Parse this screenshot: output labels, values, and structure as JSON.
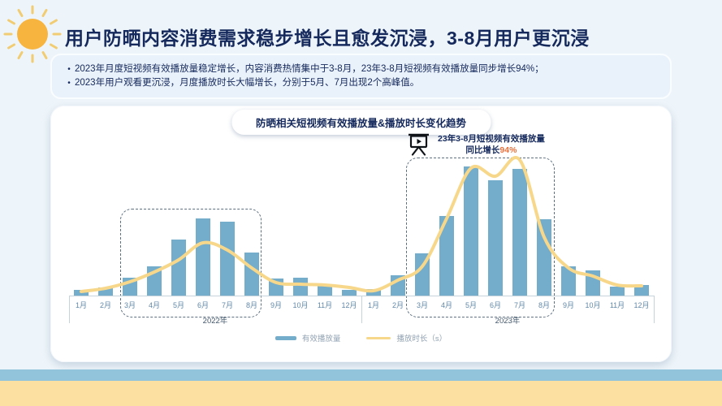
{
  "slide": {
    "title": "用户防晒内容消费需求稳步增长且愈发沉浸，3-8月用户更沉浸",
    "bullet_marker": "•",
    "bullets": [
      "2023年月度短视频有效播放量稳定增长，内容消费热情集中于3-8月，23年3-8月短视频有效播放量同步增长94%；",
      "2023年用户观看更沉浸，月度播放时长大幅增长，分别于5月、7月出现2个高峰值。"
    ]
  },
  "chart": {
    "title": "防晒相关短视频有效播放量&播放时长变化趋势",
    "annotation": {
      "icon": "projector-screen-icon",
      "line1": "23年3-8月短视频有效播放量",
      "line2_prefix": "同比增长",
      "line2_value": "94%"
    },
    "legend": [
      {
        "label": "有效播放量",
        "type": "bar"
      },
      {
        "label": "播放时长（s）",
        "type": "line"
      }
    ]
  },
  "chart_data": {
    "type": "bar",
    "note": "combined bar + smooth line chart; no numeric y-axis shown, values are relative index units estimated from pixel heights",
    "categories": [
      "1月",
      "2月",
      "3月",
      "4月",
      "5月",
      "6月",
      "7月",
      "8月",
      "9月",
      "10月",
      "11月",
      "12月"
    ],
    "year_groups": [
      "2022年",
      "2023年"
    ],
    "series": [
      {
        "name": "有效播放量",
        "type": "bar",
        "values": [
          7,
          10,
          22,
          36,
          69,
          95,
          91,
          53,
          21,
          22,
          13,
          7,
          8,
          25,
          52,
          98,
          159,
          142,
          156,
          94,
          36,
          31,
          11,
          13
        ]
      },
      {
        "name": "播放时长（s）",
        "type": "line",
        "values": [
          5,
          9,
          17,
          29,
          44,
          65,
          56,
          34,
          16,
          14,
          13,
          10,
          6,
          19,
          36,
          95,
          157,
          147,
          167,
          72,
          34,
          24,
          13,
          12
        ]
      }
    ],
    "ylim": [
      0,
      234
    ],
    "grid": false,
    "legend_position": "bottom",
    "highlight_ranges": [
      {
        "year": "2022年",
        "months": "3月-8月",
        "style": "dashed-box"
      },
      {
        "year": "2023年",
        "months": "3月-8月",
        "style": "dashed-box"
      }
    ]
  },
  "colors": {
    "page_bg": "#eef5fa",
    "box_bg": "#e9f1fa",
    "navy": "#15295c",
    "bar_blue": "#74adcb",
    "line_yellow": "#f7d78a",
    "accent_orange": "#e7703c",
    "band_blue": "#92c4db",
    "band_yellow": "#fce0a2",
    "sun_yellow": "#f7b43e",
    "sun_ray": "#f1cc72",
    "axis_gray": "#c7d3da",
    "label_blue": "#6288a8",
    "legend_gray": "#92a3b3"
  }
}
